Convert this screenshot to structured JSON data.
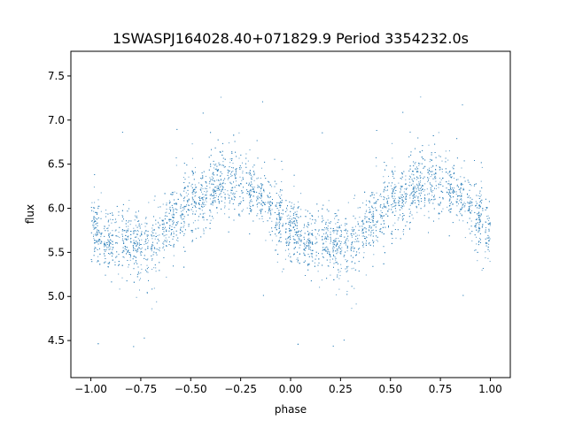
{
  "chart_data": {
    "type": "scatter",
    "title": "1SWASPJ164028.40+071829.9 Period 3354232.0s",
    "xlabel": "phase",
    "ylabel": "flux",
    "xlim": [
      -1.1,
      1.1
    ],
    "ylim": [
      4.08,
      7.78
    ],
    "xticks": [
      -1.0,
      -0.75,
      -0.5,
      -0.25,
      0.0,
      0.25,
      0.5,
      0.75,
      1.0
    ],
    "xtick_labels": [
      "−1.00",
      "−0.75",
      "−0.50",
      "−0.25",
      "0.00",
      "0.25",
      "0.50",
      "0.75",
      "1.00"
    ],
    "yticks": [
      4.5,
      5.0,
      5.5,
      6.0,
      6.5,
      7.0,
      7.5
    ],
    "ytick_labels": [
      "4.5",
      "5.0",
      "5.5",
      "6.0",
      "6.5",
      "7.0",
      "7.5"
    ],
    "grid": false,
    "marker_color": "#1f77b4",
    "series": [
      {
        "x": [
          -0.5,
          -0.4,
          -0.3,
          -0.2,
          -0.1,
          0.0,
          0.1,
          0.2,
          0.3,
          0.4
        ],
        "y": [
          6.05,
          6.2,
          6.35,
          6.25,
          6.05,
          5.75,
          5.65,
          5.6,
          5.55,
          5.9
        ]
      }
    ]
  }
}
